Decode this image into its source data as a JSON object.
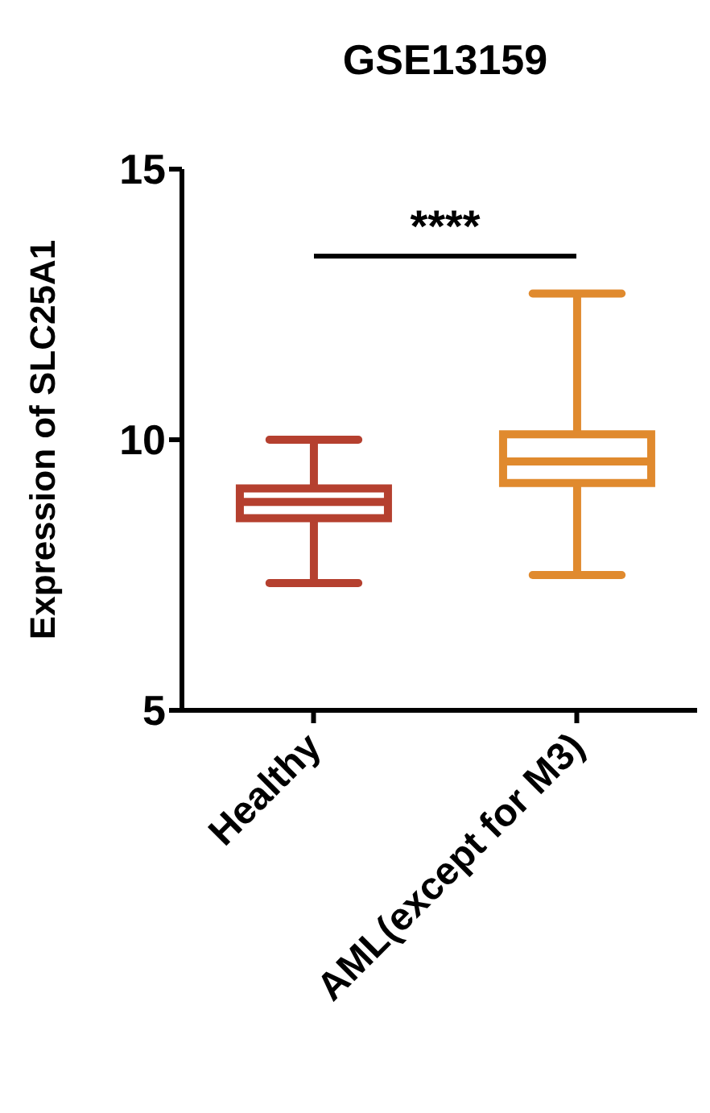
{
  "chart_data": {
    "type": "box",
    "title": "GSE13159",
    "ylabel": "Expression of SLC25A1",
    "categories": [
      "Healthy",
      "AML(except for M3)"
    ],
    "colors": [
      "#b5402f",
      "#e08a2e"
    ],
    "boxes": [
      {
        "low": 7.35,
        "q1": 8.55,
        "median": 8.85,
        "q3": 9.1,
        "high": 10.0
      },
      {
        "low": 7.5,
        "q1": 9.2,
        "median": 9.6,
        "q3": 10.1,
        "high": 12.7
      }
    ],
    "ylim": [
      5,
      15
    ],
    "yticks": [
      5,
      10,
      15
    ],
    "annotations": [
      "****"
    ]
  }
}
